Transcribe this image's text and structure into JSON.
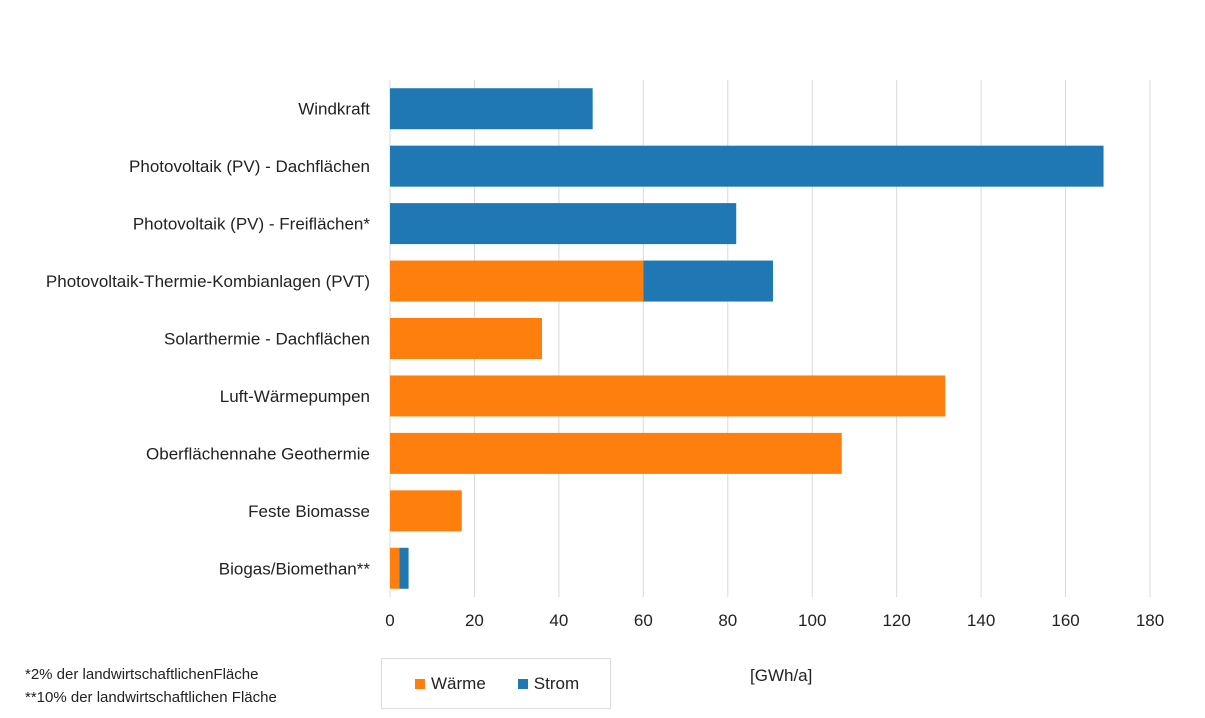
{
  "chart_data": {
    "type": "bar",
    "orientation": "horizontal",
    "stacked": true,
    "title": "",
    "xlabel": "[GWh/a]",
    "ylabel": "",
    "xlim": [
      0,
      180
    ],
    "xticks": [
      0,
      20,
      40,
      60,
      80,
      100,
      120,
      140,
      160,
      180
    ],
    "grid": true,
    "legend_position": "bottom-center",
    "categories": [
      "Windkraft",
      "Photovoltaik (PV) - Dachflächen",
      "Photovoltaik (PV) - Freiflächen*",
      "Photovoltaik-Thermie-Kombianlagen (PVT)",
      "Solarthermie - Dachflächen",
      "Luft-Wärmepumpen",
      "Oberflächennahe Geothermie",
      "Feste Biomasse",
      "Biogas/Biomethan**"
    ],
    "series": [
      {
        "name": "Wärme",
        "color": "#FF7F0E",
        "values": [
          0,
          0,
          0,
          60,
          36,
          131.5,
          107,
          17,
          2.2
        ]
      },
      {
        "name": "Strom",
        "color": "#1F77B4",
        "values": [
          48,
          169,
          82,
          30.7,
          0,
          0,
          0,
          0,
          2.2
        ]
      }
    ]
  },
  "footnotes": [
    "*2% der landwirtschaftlichenFläche",
    "**10% der landwirtschaftlichen Fläche"
  ],
  "legend": {
    "items": [
      {
        "label": "Wärme",
        "color": "#FF7F0E"
      },
      {
        "label": "Strom",
        "color": "#1F77B4"
      }
    ]
  }
}
